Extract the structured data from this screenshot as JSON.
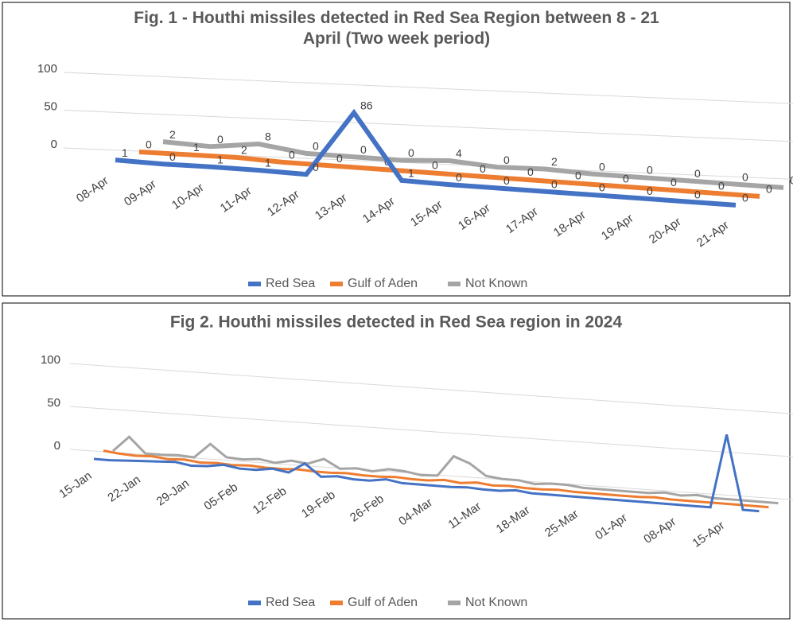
{
  "charts": [
    {
      "chart_data": {
        "type": "line",
        "title": "Fig. 1 - Houthi missiles detected in Red Sea Region between 8 - 21 April (Two week period)",
        "categories": [
          "08-Apr",
          "09-Apr",
          "10-Apr",
          "11-Apr",
          "12-Apr",
          "13-Apr",
          "14-Apr",
          "15-Apr",
          "16-Apr",
          "17-Apr",
          "18-Apr",
          "19-Apr",
          "20-Apr",
          "21-Apr"
        ],
        "series": [
          {
            "name": "Red Sea",
            "color": "#4472c4",
            "values": [
              1,
              0,
              1,
              1,
              0,
              86,
              1,
              0,
              0,
              0,
              0,
              0,
              0,
              0
            ]
          },
          {
            "name": "Gulf of Aden",
            "color": "#ed7d31",
            "values": [
              0,
              1,
              2,
              0,
              0,
              0,
              0,
              0,
              0,
              0,
              0,
              0,
              0,
              0
            ]
          },
          {
            "name": "Not Known",
            "color": "#a5a5a5",
            "values": [
              2,
              0,
              8,
              0,
              0,
              0,
              4,
              0,
              2,
              0,
              0,
              0,
              0,
              0
            ]
          }
        ],
        "ylim": [
          0,
          100
        ],
        "yticks": [
          0,
          50,
          100
        ],
        "grid": true,
        "data_labels": true,
        "legend": "bottom"
      }
    },
    {
      "chart_data": {
        "type": "line",
        "title": "Fig 2. Houthi missiles detected in Red Sea region in 2024",
        "categories": [
          "15-Jan",
          null,
          null,
          "22-Jan",
          null,
          null,
          "29-Jan",
          null,
          null,
          "05-Feb",
          null,
          null,
          "12-Feb",
          null,
          null,
          "19-Feb",
          null,
          null,
          "26-Feb",
          null,
          null,
          "04-Mar",
          null,
          null,
          "11-Mar",
          null,
          null,
          "18-Mar",
          null,
          null,
          "25-Mar",
          null,
          null,
          "01-Apr",
          null,
          null,
          "08-Apr",
          null,
          null,
          "15-Apr",
          null,
          null
        ],
        "series": [
          {
            "name": "Red Sea",
            "color": "#4472c4",
            "values": [
              0,
              0,
              1,
              2,
              3,
              4,
              1,
              2,
              5,
              2,
              2,
              5,
              2,
              14,
              0,
              2,
              0,
              0,
              3,
              0,
              0,
              0,
              0,
              1,
              0,
              0,
              2,
              0,
              0,
              0,
              0,
              0,
              0,
              0,
              0,
              0,
              0,
              0,
              0,
              86,
              0,
              0
            ]
          },
          {
            "name": "Gulf of Aden",
            "color": "#ed7d31",
            "values": [
              5,
              3,
              2,
              3,
              1,
              2,
              0,
              1,
              0,
              1,
              0,
              0,
              1,
              0,
              0,
              1,
              0,
              0,
              1,
              0,
              0,
              2,
              0,
              2,
              0,
              1,
              0,
              0,
              1,
              0,
              0,
              0,
              0,
              0,
              1,
              0,
              0,
              0,
              0,
              0,
              0,
              0
            ]
          },
          {
            "name": "Not Known",
            "color": "#a5a5a5",
            "values": [
              0,
              18,
              0,
              0,
              1,
              0,
              17,
              3,
              2,
              4,
              1,
              5,
              3,
              10,
              0,
              2,
              0,
              4,
              3,
              0,
              1,
              25,
              18,
              5,
              3,
              3,
              0,
              2,
              2,
              0,
              0,
              0,
              0,
              0,
              2,
              0,
              2,
              0,
              0,
              0,
              0,
              0
            ]
          }
        ],
        "ylim": [
          0,
          100
        ],
        "yticks": [
          0,
          50,
          100
        ],
        "grid": true,
        "data_labels": false,
        "legend": "bottom"
      }
    }
  ]
}
